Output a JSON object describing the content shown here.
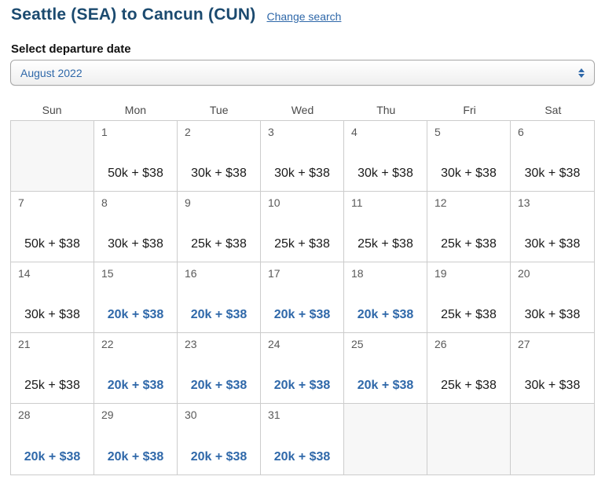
{
  "header": {
    "title": "Seattle (SEA) to Cancun (CUN)",
    "change_search": "Change search"
  },
  "departure_section": {
    "label": "Select departure date",
    "selected_month": "August 2022"
  },
  "calendar": {
    "day_headers": [
      "Sun",
      "Mon",
      "Tue",
      "Wed",
      "Thu",
      "Fri",
      "Sat"
    ],
    "cells": [
      {
        "day": "",
        "price": "",
        "lowest": false
      },
      {
        "day": "1",
        "price": "50k + $38",
        "lowest": false
      },
      {
        "day": "2",
        "price": "30k + $38",
        "lowest": false
      },
      {
        "day": "3",
        "price": "30k + $38",
        "lowest": false
      },
      {
        "day": "4",
        "price": "30k + $38",
        "lowest": false
      },
      {
        "day": "5",
        "price": "30k + $38",
        "lowest": false
      },
      {
        "day": "6",
        "price": "30k + $38",
        "lowest": false
      },
      {
        "day": "7",
        "price": "50k + $38",
        "lowest": false
      },
      {
        "day": "8",
        "price": "30k + $38",
        "lowest": false
      },
      {
        "day": "9",
        "price": "25k + $38",
        "lowest": false
      },
      {
        "day": "10",
        "price": "25k + $38",
        "lowest": false
      },
      {
        "day": "11",
        "price": "25k + $38",
        "lowest": false
      },
      {
        "day": "12",
        "price": "25k + $38",
        "lowest": false
      },
      {
        "day": "13",
        "price": "30k + $38",
        "lowest": false
      },
      {
        "day": "14",
        "price": "30k + $38",
        "lowest": false
      },
      {
        "day": "15",
        "price": "20k + $38",
        "lowest": true
      },
      {
        "day": "16",
        "price": "20k + $38",
        "lowest": true
      },
      {
        "day": "17",
        "price": "20k + $38",
        "lowest": true
      },
      {
        "day": "18",
        "price": "20k + $38",
        "lowest": true
      },
      {
        "day": "19",
        "price": "25k + $38",
        "lowest": false
      },
      {
        "day": "20",
        "price": "30k + $38",
        "lowest": false
      },
      {
        "day": "21",
        "price": "25k + $38",
        "lowest": false
      },
      {
        "day": "22",
        "price": "20k + $38",
        "lowest": true
      },
      {
        "day": "23",
        "price": "20k + $38",
        "lowest": true
      },
      {
        "day": "24",
        "price": "20k + $38",
        "lowest": true
      },
      {
        "day": "25",
        "price": "20k + $38",
        "lowest": true
      },
      {
        "day": "26",
        "price": "25k + $38",
        "lowest": false
      },
      {
        "day": "27",
        "price": "30k + $38",
        "lowest": false
      },
      {
        "day": "28",
        "price": "20k + $38",
        "lowest": true
      },
      {
        "day": "29",
        "price": "20k + $38",
        "lowest": true
      },
      {
        "day": "30",
        "price": "20k + $38",
        "lowest": true
      },
      {
        "day": "31",
        "price": "20k + $38",
        "lowest": true
      },
      {
        "day": "",
        "price": "",
        "lowest": false
      },
      {
        "day": "",
        "price": "",
        "lowest": false
      },
      {
        "day": "",
        "price": "",
        "lowest": false
      }
    ]
  },
  "colors": {
    "title_navy": "#1b4a6f",
    "link_blue": "#2f68a9",
    "price_low_blue": "#2f68a9",
    "price_regular": "#1a1a1a",
    "grid_border": "#cccccc",
    "empty_cell_bg": "#f7f7f7",
    "date_number": "#595959",
    "day_header": "#4a4a4a"
  }
}
